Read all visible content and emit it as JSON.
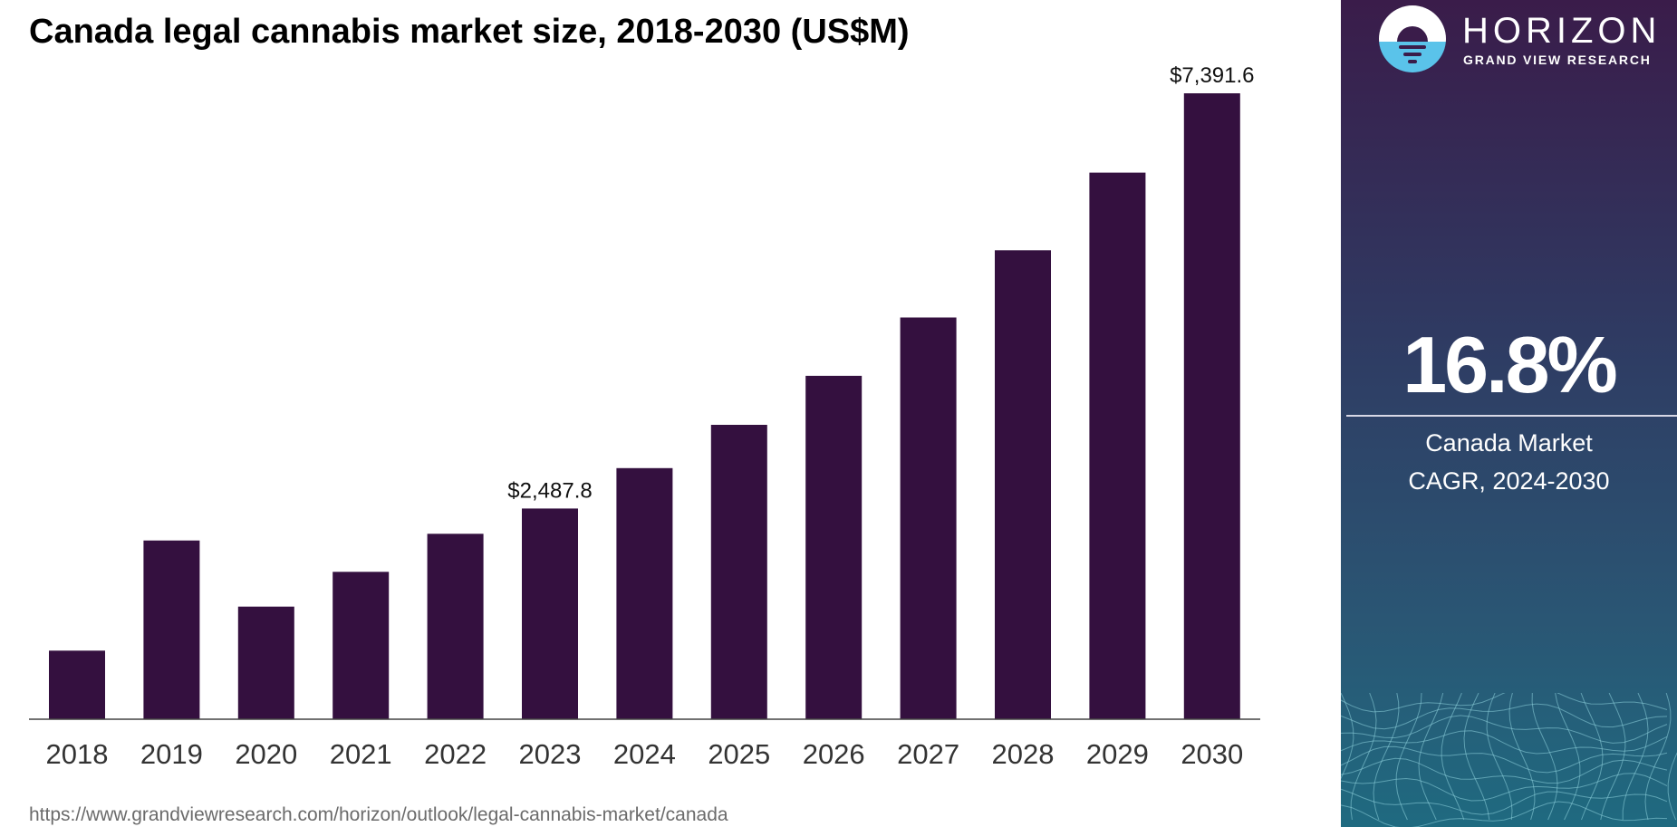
{
  "chart_data": {
    "type": "bar",
    "title": "Canada legal cannabis market size, 2018-2030 (US$M)",
    "categories": [
      "2018",
      "2019",
      "2020",
      "2021",
      "2022",
      "2023",
      "2024",
      "2025",
      "2026",
      "2027",
      "2028",
      "2029",
      "2030"
    ],
    "values": [
      810,
      2110,
      1330,
      1740,
      2190,
      2487.8,
      2965,
      3476,
      4055,
      4744,
      5538,
      6455,
      7391.6
    ],
    "data_labels": [
      {
        "category": "2023",
        "text": "$2,487.8"
      },
      {
        "category": "2030",
        "text": "$7,391.6"
      }
    ],
    "xlabel": "",
    "ylabel": "",
    "ylim": [
      0,
      7391.6
    ],
    "grid": false,
    "bar_color": "#34103f",
    "axis_color": "#444444"
  },
  "source_url": "https://www.grandviewresearch.com/horizon/outlook/legal-cannabis-market/canada",
  "side_panel": {
    "brand_name": "HORIZON",
    "brand_sub": "GRAND VIEW RESEARCH",
    "cagr_value": "16.8%",
    "cagr_label_line1": "Canada Market",
    "cagr_label_line2": "CAGR, 2024-2030",
    "gradient_top": "#3a1c4a",
    "gradient_bottom": "#1f6a80",
    "logo_icon": "horizon-sun-icon"
  }
}
